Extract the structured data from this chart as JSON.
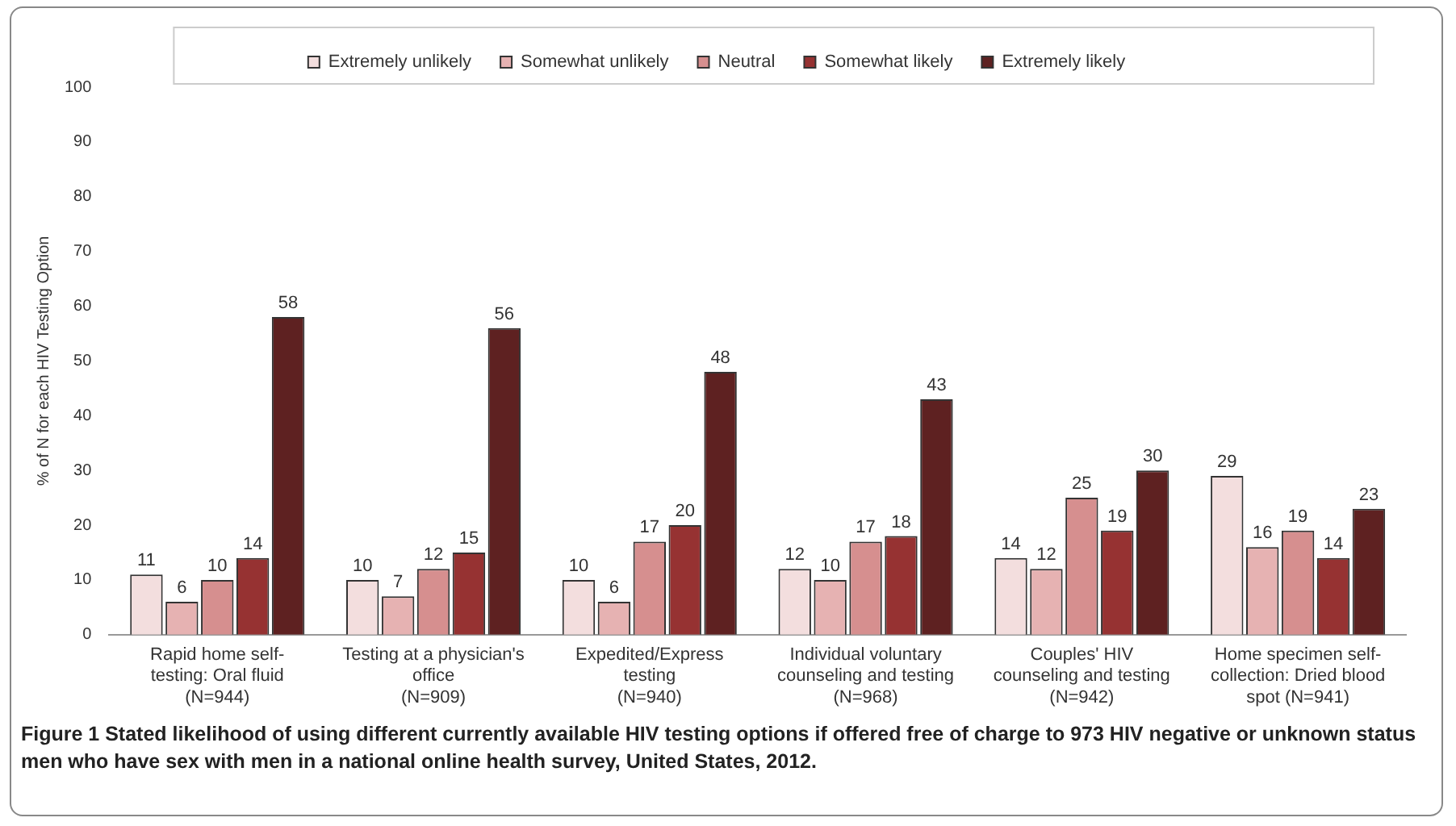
{
  "chart_data": {
    "type": "bar",
    "title": "Figure 1 Stated likelihood of using different currently available HIV testing options if offered free of charge to 973 HIV negative or unknown status men who have sex with men in a national online health survey, United States, 2012.",
    "ylabel": "% of N for each HIV Testing Option",
    "categories": [
      "Rapid home self-\ntesting: Oral fluid\n(N=944)",
      "Testing at a physician's\noffice\n(N=909)",
      "Expedited/Express\ntesting\n(N=940)",
      "Individual voluntary\ncounseling and testing\n(N=968)",
      "Couples' HIV\ncounseling and testing\n(N=942)",
      "Home specimen self-\ncollection: Dried blood\nspot (N=941)"
    ],
    "series": [
      {
        "name": "Extremely unlikely",
        "color": "#f3dede",
        "values": [
          11,
          10,
          10,
          12,
          14,
          29
        ]
      },
      {
        "name": "Somewhat unlikely",
        "color": "#e6b2b2",
        "values": [
          6,
          7,
          6,
          10,
          12,
          16
        ]
      },
      {
        "name": "Neutral",
        "color": "#d68f8f",
        "values": [
          10,
          12,
          17,
          17,
          25,
          19
        ]
      },
      {
        "name": "Somewhat likely",
        "color": "#963232",
        "values": [
          14,
          15,
          20,
          18,
          19,
          14
        ]
      },
      {
        "name": "Extremely likely",
        "color": "#5e2121",
        "values": [
          58,
          56,
          48,
          43,
          30,
          23
        ]
      }
    ],
    "ylim": [
      0,
      100
    ],
    "yticks": [
      0,
      10,
      20,
      30,
      40,
      50,
      60,
      70,
      80,
      90,
      100
    ],
    "grid": false,
    "legend": "top",
    "data_labels": true
  }
}
